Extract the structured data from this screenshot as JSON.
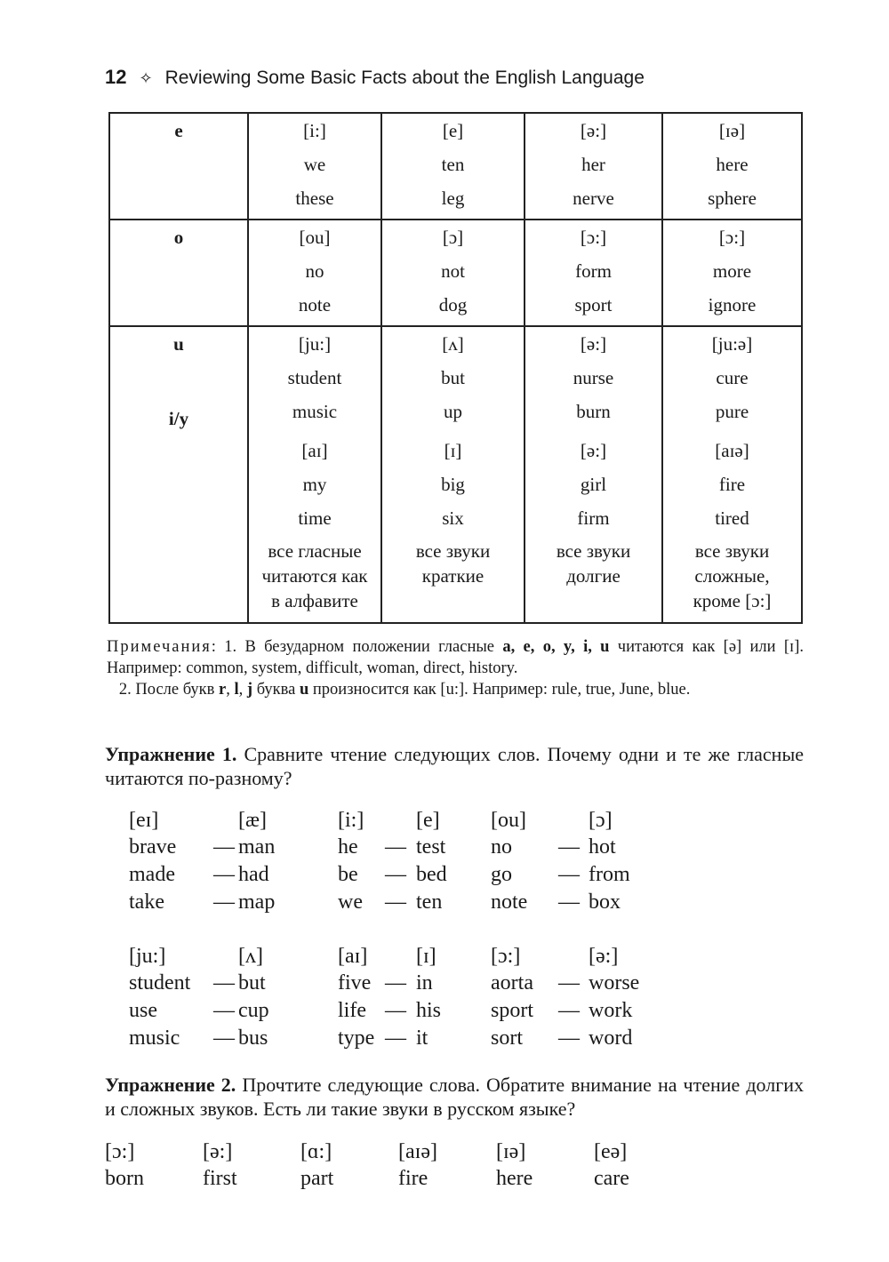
{
  "header": {
    "page_number": "12",
    "title": "Reviewing Some Basic Facts about the English Language",
    "icon": "diamond-icon"
  },
  "table": {
    "rows": [
      {
        "letter": "e",
        "cells": [
          [
            "[i:]",
            "we",
            "these"
          ],
          [
            "[e]",
            "ten",
            "leg"
          ],
          [
            "[ə:]",
            "her",
            "nerve"
          ],
          [
            "[ɪə]",
            "here",
            "sphere"
          ]
        ]
      },
      {
        "letter": "o",
        "cells": [
          [
            "[ou]",
            "no",
            "note"
          ],
          [
            "[ɔ]",
            "not",
            "dog"
          ],
          [
            "[ɔ:]",
            "form",
            "sport"
          ],
          [
            "[ɔ:]",
            "more",
            "ignore"
          ]
        ]
      },
      {
        "letter": "u",
        "letter2": "i/y",
        "cells": [
          [
            "[ju:]",
            "student",
            "music",
            "[aɪ]",
            "my",
            "time",
            "все гласные",
            "читаются как",
            "в алфавите"
          ],
          [
            "[ʌ]",
            "but",
            "up",
            "[ɪ]",
            "big",
            "six",
            "все звуки",
            "краткие"
          ],
          [
            "[ə:]",
            "nurse",
            "burn",
            "[ə:]",
            "girl",
            "firm",
            "все звуки",
            "долгие"
          ],
          [
            "[ju:ə]",
            "cure",
            "pure",
            "[aɪə]",
            "fire",
            "tired",
            "все звуки",
            "сложные,",
            "кроме [ɔ:]"
          ]
        ]
      }
    ]
  },
  "notes": {
    "label": "Примечания",
    "note1_a": ": 1. В безударном положении гласные ",
    "note1_letters": "a, e, o, y, i, u",
    "note1_b": " читаются как [ə] или [ɪ]. Например: common, system, difficult, woman, direct, history.",
    "note2_a": "2. После букв ",
    "note2_letters": "r",
    "note2_letters2": "l",
    "note2_letters3": "j",
    "note2_b": " буква ",
    "note2_u": "u",
    "note2_c": " произносится как [u:]. Например: rule, true, June, blue."
  },
  "exercise1": {
    "title": "Упражнение 1.",
    "text": " Сравните чтение следующих слов. Почему одни и те же гласные читаются по-разному?",
    "blocks": [
      {
        "pairs": [
          {
            "h": [
              "[eɪ]",
              "[æ]"
            ],
            "rows": [
              [
                "brave",
                "man"
              ],
              [
                "made",
                "had"
              ],
              [
                "take",
                "map"
              ]
            ]
          },
          {
            "h": [
              "[i:]",
              "[e]"
            ],
            "rows": [
              [
                "he",
                "test"
              ],
              [
                "be",
                "bed"
              ],
              [
                "we",
                "ten"
              ]
            ]
          },
          {
            "h": [
              "[ou]",
              "[ɔ]"
            ],
            "rows": [
              [
                "no",
                "hot"
              ],
              [
                "go",
                "from"
              ],
              [
                "note",
                "box"
              ]
            ]
          }
        ]
      },
      {
        "pairs": [
          {
            "h": [
              "[ju:]",
              "[ʌ]"
            ],
            "rows": [
              [
                "student",
                "but"
              ],
              [
                "use",
                "cup"
              ],
              [
                "music",
                "bus"
              ]
            ]
          },
          {
            "h": [
              "[aɪ]",
              "[ɪ]"
            ],
            "rows": [
              [
                "five",
                "in"
              ],
              [
                "life",
                "his"
              ],
              [
                "type",
                "it"
              ]
            ]
          },
          {
            "h": [
              "[ɔ:]",
              "[ə:]"
            ],
            "rows": [
              [
                "aorta",
                "worse"
              ],
              [
                "sport",
                "work"
              ],
              [
                "sort",
                "word"
              ]
            ]
          }
        ]
      }
    ]
  },
  "exercise2": {
    "title": "Упражнение 2.",
    "text": " Прочтите следующие слова. Обратите внимание на чтение долгих и сложных звуков. Есть ли такие звуки в русском языке?",
    "columns": [
      [
        "[ɔ:]",
        "born"
      ],
      [
        "[ə:]",
        "first"
      ],
      [
        "[ɑ:]",
        "part"
      ],
      [
        "[aɪə]",
        "fire"
      ],
      [
        "[ɪə]",
        "here"
      ],
      [
        "[eə]",
        "care"
      ]
    ]
  }
}
